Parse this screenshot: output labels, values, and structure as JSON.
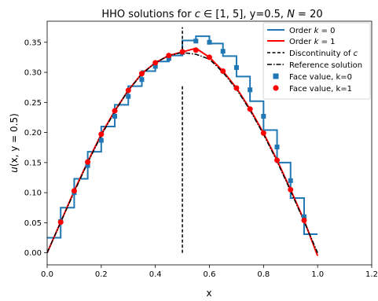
{
  "chart_data": {
    "type": "line",
    "title": "HHO solutions for c ∈ [1, 5], y=0.5, N = 20",
    "title_parts": {
      "prefix": "HHO solutions for ",
      "c": "c",
      "range": " ∈ [1, 5], y=0.5, ",
      "N": "N",
      "suffix": " = 20"
    },
    "xlabel": "x",
    "ylabel_parts": {
      "u": "u",
      "args": "(x, y = 0.5)"
    },
    "xlim": [
      0.0,
      1.2
    ],
    "ylim": [
      -0.02,
      0.385
    ],
    "x_ticks": [
      "0.0",
      "0.2",
      "0.4",
      "0.6",
      "0.8",
      "1.0",
      "1.2"
    ],
    "y_ticks": [
      "0.00",
      "0.05",
      "0.10",
      "0.15",
      "0.20",
      "0.25",
      "0.30",
      "0.35"
    ],
    "grid": false,
    "legend_placement": "top-right",
    "legend": {
      "order0_prefix": "Order ",
      "order0_k": "k",
      "order0_suffix": " = 0",
      "order1_prefix": "Order ",
      "order1_k": "k",
      "order1_suffix": " = 1",
      "disc_prefix": "Discontinuity of ",
      "disc_c": "c",
      "reference": "Reference solution",
      "face0": "Face value, k=0",
      "face1": "Face value, k=1"
    },
    "colors": {
      "order0": "#1f77b4",
      "order1": "#ff0000",
      "discontinuity": "#000000",
      "reference": "#000000"
    },
    "discontinuity": {
      "x": 0.5,
      "y_from": 0.0,
      "y_to": 0.375,
      "gap": [
        0.28,
        0.33
      ]
    },
    "cells": [
      0,
      0.05,
      0.1,
      0.15,
      0.2,
      0.25,
      0.3,
      0.35,
      0.4,
      0.45,
      0.5,
      0.55,
      0.6,
      0.65,
      0.7,
      0.75,
      0.8,
      0.85,
      0.9,
      0.95,
      1.0
    ],
    "order0_values": [
      0.025,
      0.075,
      0.123,
      0.168,
      0.21,
      0.246,
      0.277,
      0.302,
      0.318,
      0.328,
      0.353,
      0.36,
      0.348,
      0.327,
      0.293,
      0.252,
      0.204,
      0.15,
      0.091,
      0.031
    ],
    "face_values_k0": {
      "x": [
        0.05,
        0.1,
        0.15,
        0.2,
        0.25,
        0.3,
        0.35,
        0.4,
        0.45,
        0.5,
        0.55,
        0.6,
        0.65,
        0.7,
        0.75,
        0.8,
        0.85,
        0.9,
        0.95
      ],
      "y": [
        0.052,
        0.1,
        0.145,
        0.187,
        0.227,
        0.26,
        0.288,
        0.31,
        0.323,
        0.333,
        0.352,
        0.35,
        0.335,
        0.308,
        0.271,
        0.227,
        0.176,
        0.12,
        0.06
      ]
    },
    "face_values_k1": {
      "x": [
        0.05,
        0.1,
        0.15,
        0.2,
        0.25,
        0.3,
        0.35,
        0.4,
        0.45,
        0.5,
        0.55,
        0.6,
        0.65,
        0.7,
        0.75,
        0.8,
        0.85,
        0.9,
        0.95
      ],
      "y": [
        0.051,
        0.103,
        0.151,
        0.197,
        0.236,
        0.27,
        0.298,
        0.316,
        0.328,
        0.334,
        0.337,
        0.325,
        0.302,
        0.274,
        0.239,
        0.199,
        0.154,
        0.105,
        0.054
      ]
    },
    "order1_curve": {
      "x": [
        0.0,
        0.05,
        0.1,
        0.15,
        0.2,
        0.25,
        0.3,
        0.35,
        0.4,
        0.45,
        0.5,
        0.55,
        0.6,
        0.65,
        0.7,
        0.75,
        0.8,
        0.85,
        0.9,
        0.95,
        1.0
      ],
      "y": [
        0.0,
        0.051,
        0.103,
        0.151,
        0.197,
        0.236,
        0.27,
        0.298,
        0.316,
        0.328,
        0.334,
        0.34,
        0.325,
        0.302,
        0.274,
        0.239,
        0.199,
        0.154,
        0.105,
        0.054,
        -0.005
      ]
    },
    "reference_curve": {
      "x": [
        0.0,
        0.05,
        0.1,
        0.15,
        0.2,
        0.25,
        0.3,
        0.35,
        0.4,
        0.45,
        0.5,
        0.55,
        0.6,
        0.65,
        0.7,
        0.75,
        0.8,
        0.85,
        0.9,
        0.95,
        1.0
      ],
      "y": [
        0.0,
        0.051,
        0.101,
        0.15,
        0.195,
        0.235,
        0.27,
        0.297,
        0.316,
        0.328,
        0.333,
        0.33,
        0.322,
        0.3,
        0.272,
        0.237,
        0.197,
        0.152,
        0.103,
        0.052,
        0.0
      ]
    }
  }
}
